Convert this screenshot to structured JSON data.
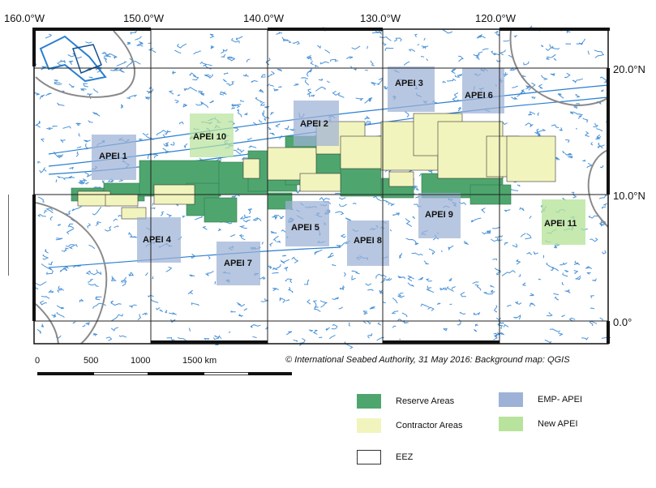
{
  "map": {
    "longitude_labels": [
      "160.0°W",
      "150.0°W",
      "140.0°W",
      "130.0°W",
      "120.0°W"
    ],
    "latitude_labels": [
      "20.0°N",
      "10.0°N",
      "0.0°"
    ],
    "apei_labels": [
      "APEI 1",
      "APEI 2",
      "APEI 3",
      "APEI 4",
      "APEI 5",
      "APEI 6",
      "APEI 7",
      "APEI 8",
      "APEI 9",
      "APEI 10",
      "APEI 11"
    ],
    "colors": {
      "reserve": "#4ea66e",
      "contractor": "#f2f4bd",
      "emp_apei": "#9db2d6",
      "new_apei": "#b8e39c",
      "bathymetry": "#2a7fd0",
      "eez": "#888888",
      "grid": "#222222"
    }
  },
  "scale_bar": {
    "ticks": [
      "0",
      "500",
      "1000",
      "1500 km"
    ]
  },
  "credit": "© International Seabed Authority, 31 May 2016: Background map: QGIS",
  "legend": {
    "reserve": "Reserve Areas",
    "contractor": "Contractor Areas",
    "eez": "EEZ",
    "emp_apei": "EMP- APEI",
    "new_apei": "New APEI"
  }
}
